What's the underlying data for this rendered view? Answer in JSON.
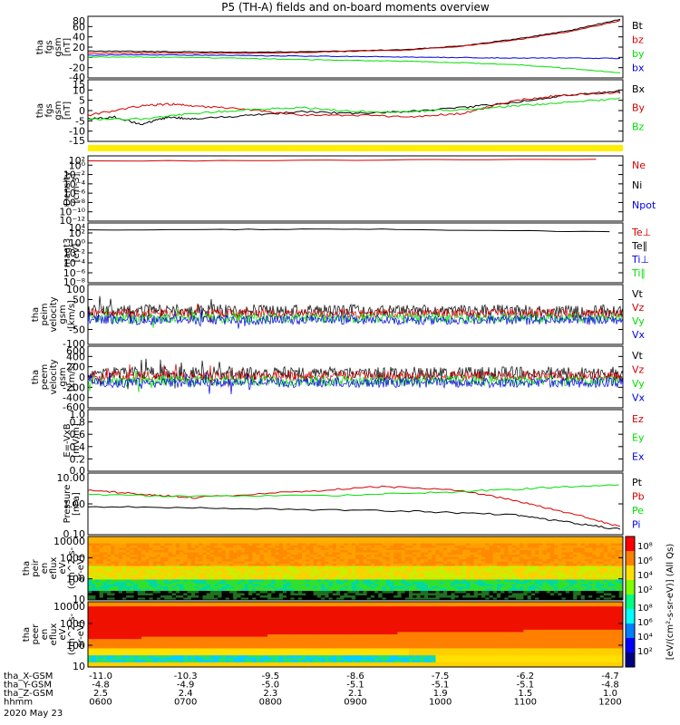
{
  "title": "P5 (TH-A) fields and on-board moments overview",
  "colors": {
    "black": "#000000",
    "red": "#d40000",
    "green": "#00e000",
    "blue": "#0000e0",
    "yellow": "#ffee00"
  },
  "chart_data": {
    "type": "line",
    "panels": [
      {
        "id": "fgs-gsm",
        "ylabel": [
          "tha",
          "fgs",
          "gsm",
          "[nT]"
        ],
        "ylim": [
          -40,
          90
        ],
        "ticks": [
          "80",
          "60",
          "40",
          "20",
          "0",
          "-20",
          "-40"
        ],
        "legend": [
          "Bt",
          "bz",
          "by",
          "bx"
        ],
        "legend_colors": [
          "black",
          "red",
          "green",
          "blue"
        ],
        "series": [
          {
            "name": "Bt",
            "color": "black",
            "points": [
              [
                0,
                17
              ],
              [
                0.1,
                16
              ],
              [
                0.2,
                15
              ],
              [
                0.3,
                14
              ],
              [
                0.45,
                16
              ],
              [
                0.6,
                20
              ],
              [
                0.7,
                28
              ],
              [
                0.8,
                42
              ],
              [
                0.9,
                60
              ],
              [
                1,
                85
              ]
            ]
          },
          {
            "name": "bz",
            "color": "red",
            "points": [
              [
                0,
                12
              ],
              [
                0.1,
                13
              ],
              [
                0.2,
                12
              ],
              [
                0.3,
                12
              ],
              [
                0.45,
                15
              ],
              [
                0.6,
                19
              ],
              [
                0.7,
                27
              ],
              [
                0.8,
                40
              ],
              [
                0.9,
                58
              ],
              [
                1,
                82
              ]
            ]
          },
          {
            "name": "by",
            "color": "green",
            "points": [
              [
                0,
                4
              ],
              [
                0.1,
                4
              ],
              [
                0.2,
                3
              ],
              [
                0.3,
                1
              ],
              [
                0.4,
                -1
              ],
              [
                0.5,
                -3
              ],
              [
                0.6,
                -5
              ],
              [
                0.7,
                -8
              ],
              [
                0.8,
                -12
              ],
              [
                0.9,
                -20
              ],
              [
                1,
                -30
              ]
            ]
          },
          {
            "name": "bx",
            "color": "blue",
            "points": [
              [
                0,
                8
              ],
              [
                0.1,
                9
              ],
              [
                0.2,
                8
              ],
              [
                0.3,
                7
              ],
              [
                0.4,
                6
              ],
              [
                0.5,
                5
              ],
              [
                0.6,
                4
              ],
              [
                0.7,
                3
              ],
              [
                0.8,
                2
              ],
              [
                0.9,
                2
              ],
              [
                1,
                1
              ]
            ]
          }
        ]
      },
      {
        "id": "fgs-gsm-zoom",
        "ylabel": [
          "tha",
          "fgs",
          "gsm",
          "[nT]"
        ],
        "ylim": [
          -17,
          16
        ],
        "ticks": [
          "15",
          "10",
          "5",
          "0",
          "-5",
          "-10",
          "-15"
        ],
        "legend": [
          "Bx",
          "By",
          "Bz"
        ],
        "legend_colors": [
          "black",
          "red",
          "green"
        ],
        "series": [
          {
            "name": "Bx",
            "color": "black",
            "points": [
              [
                0,
                -5
              ],
              [
                0.05,
                -4
              ],
              [
                0.1,
                -8
              ],
              [
                0.15,
                -4
              ],
              [
                0.2,
                -5
              ],
              [
                0.3,
                -3
              ],
              [
                0.4,
                -1
              ],
              [
                0.5,
                -2
              ],
              [
                0.6,
                -1
              ],
              [
                0.7,
                1
              ],
              [
                0.8,
                4
              ],
              [
                0.9,
                8
              ],
              [
                1,
                10
              ]
            ]
          },
          {
            "name": "By",
            "color": "red",
            "points": [
              [
                0,
                -3
              ],
              [
                0.1,
                2
              ],
              [
                0.15,
                3
              ],
              [
                0.2,
                2
              ],
              [
                0.3,
                0
              ],
              [
                0.4,
                -3
              ],
              [
                0.5,
                -3
              ],
              [
                0.6,
                -4
              ],
              [
                0.7,
                -2
              ],
              [
                0.8,
                5
              ],
              [
                0.9,
                8
              ],
              [
                1,
                9
              ]
            ]
          },
          {
            "name": "Bz",
            "color": "green",
            "points": [
              [
                0,
                -5
              ],
              [
                0.1,
                -5
              ],
              [
                0.2,
                -2
              ],
              [
                0.3,
                0
              ],
              [
                0.4,
                1
              ],
              [
                0.5,
                -1
              ],
              [
                0.6,
                -1
              ],
              [
                0.7,
                0
              ],
              [
                0.8,
                2
              ],
              [
                0.9,
                4
              ],
              [
                1,
                6
              ]
            ]
          }
        ]
      },
      {
        "id": "density",
        "ylabel": [
          "Density",
          "[cm-3]"
        ],
        "ylim": [
          "1e-14",
          "1e4"
        ],
        "ticks": [
          "10²",
          "10⁰",
          "10⁻²",
          "10⁻⁴",
          "10⁻⁶",
          "10⁻⁸",
          "10⁻¹⁰",
          "10⁻¹²"
        ],
        "legend": [
          "Ne",
          "Ni",
          "Npot"
        ],
        "legend_colors": [
          "red",
          "black",
          "blue"
        ],
        "series": [
          {
            "name": "Ne",
            "color": "red",
            "points": [
              [
                0,
                0.92
              ],
              [
                1,
                0.95
              ]
            ]
          }
        ]
      },
      {
        "id": "temperature",
        "ylabel": [
          "magt3",
          "[eV]"
        ],
        "ylim": [
          "1e-10",
          "1e5"
        ],
        "ticks": [
          "10⁴",
          "10²",
          "10⁰",
          "10⁻²",
          "10⁻⁴",
          "10⁻⁶",
          "10⁻⁸"
        ],
        "legend": [
          "Te⊥",
          "Te∥",
          "Ti⊥",
          "Ti∥"
        ],
        "legend_colors": [
          "red",
          "black",
          "blue",
          "green"
        ],
        "series": [
          {
            "name": "T",
            "color": "black",
            "points": [
              [
                0,
                0.88
              ],
              [
                0.5,
                0.9
              ],
              [
                1,
                0.85
              ]
            ]
          }
        ]
      },
      {
        "id": "peim-velocity",
        "ylabel": [
          "tha",
          "peim",
          "velocity",
          "gsm",
          "[km/s]"
        ],
        "ylim": [
          -120,
          110
        ],
        "ticks": [
          "100",
          "50",
          "0",
          "-50",
          "-100"
        ],
        "legend": [
          "Vt",
          "Vz",
          "Vy",
          "Vx"
        ],
        "legend_colors": [
          "black",
          "red",
          "green",
          "blue"
        ],
        "noisy": true
      },
      {
        "id": "peem-velocity",
        "ylabel": [
          "tha",
          "peem",
          "velocity",
          "gsm",
          "[km/s]"
        ],
        "ylim": [
          -650,
          650
        ],
        "ticks": [
          "600",
          "400",
          "200",
          "0",
          "-200",
          "-400",
          "-600"
        ],
        "legend": [
          "Vt",
          "Vz",
          "Vy",
          "Vx"
        ],
        "legend_colors": [
          "black",
          "red",
          "green",
          "blue"
        ],
        "noisy": true
      },
      {
        "id": "e-field",
        "ylabel": [
          "E=-VxB",
          "[mV/m]"
        ],
        "ylim": [
          0,
          1
        ],
        "ticks": [
          "1.0",
          "0.8",
          "0.6",
          "0.4",
          "0.2",
          "0.0"
        ],
        "legend": [
          "Ez",
          "Ey",
          "Ex"
        ],
        "legend_colors": [
          "red",
          "green",
          "blue"
        ]
      },
      {
        "id": "pressure",
        "ylabel": [
          "Pressure",
          "[nPa]"
        ],
        "ylim": [
          "0.01",
          "10"
        ],
        "ticks": [
          "10.00",
          "1.00",
          "0.10"
        ],
        "legend": [
          "Pt",
          "Pb",
          "Pe",
          "Pi"
        ],
        "legend_colors": [
          "black",
          "red",
          "green",
          "blue"
        ],
        "series": [
          {
            "name": "Pt",
            "color": "black",
            "points": [
              [
                0,
                0.46
              ],
              [
                0.3,
                0.42
              ],
              [
                0.6,
                0.38
              ],
              [
                0.8,
                0.32
              ],
              [
                0.9,
                0.2
              ],
              [
                1,
                0.08
              ]
            ]
          },
          {
            "name": "Pb",
            "color": "red",
            "points": [
              [
                0,
                0.72
              ],
              [
                0.1,
                0.66
              ],
              [
                0.2,
                0.6
              ],
              [
                0.4,
                0.7
              ],
              [
                0.55,
                0.78
              ],
              [
                0.7,
                0.72
              ],
              [
                0.8,
                0.55
              ],
              [
                0.9,
                0.35
              ],
              [
                1,
                0.12
              ]
            ]
          },
          {
            "name": "Pe",
            "color": "green",
            "points": [
              [
                0,
                0.65
              ],
              [
                0.2,
                0.62
              ],
              [
                0.5,
                0.64
              ],
              [
                0.7,
                0.7
              ],
              [
                0.85,
                0.76
              ],
              [
                1,
                0.82
              ]
            ]
          }
        ]
      },
      {
        "id": "peir-eflux",
        "ylabel": [
          "tha",
          "peir",
          "en",
          "eflux",
          "eV",
          "(cm^2-s-",
          "sr-eV)"
        ],
        "ticks": [
          "10000",
          "1000",
          "100",
          "10"
        ],
        "spectrogram": "ion"
      },
      {
        "id": "peer-eflux",
        "ylabel": [
          "tha",
          "peer",
          "en",
          "eflux",
          "eV",
          "(cm^2-s-",
          "sr-eV)"
        ],
        "ticks": [
          "10000",
          "1000",
          "100",
          "10"
        ],
        "spectrogram": "electron"
      }
    ],
    "colorbar": {
      "label": "[eV/(cm²-s-sr-eV)] (All Qs)",
      "ticks": [
        "10⁸",
        "10⁶",
        "10⁴",
        "10²"
      ],
      "ticks2": [
        "10⁸",
        "10⁶",
        "10⁴",
        "10²"
      ]
    },
    "x_axis": {
      "rows": [
        {
          "label": "tha_X-GSM",
          "values": [
            "-11.0",
            "-10.3",
            "-9.5",
            "-8.6",
            "-7.5",
            "-6.2",
            "-4.7"
          ]
        },
        {
          "label": "tha_Y-GSM",
          "values": [
            "-4.8",
            "-4.9",
            "-5.0",
            "-5.1",
            "-5.1",
            "-5.1",
            "-4.8"
          ]
        },
        {
          "label": "tha_Z-GSM",
          "values": [
            "2.5",
            "2.4",
            "2.3",
            "2.1",
            "1.9",
            "1.5",
            "1.0"
          ]
        },
        {
          "label": "hhmm",
          "values": [
            "0600",
            "0700",
            "0800",
            "0900",
            "1000",
            "1100",
            "1200"
          ]
        }
      ],
      "date": "2020 May 23"
    }
  }
}
